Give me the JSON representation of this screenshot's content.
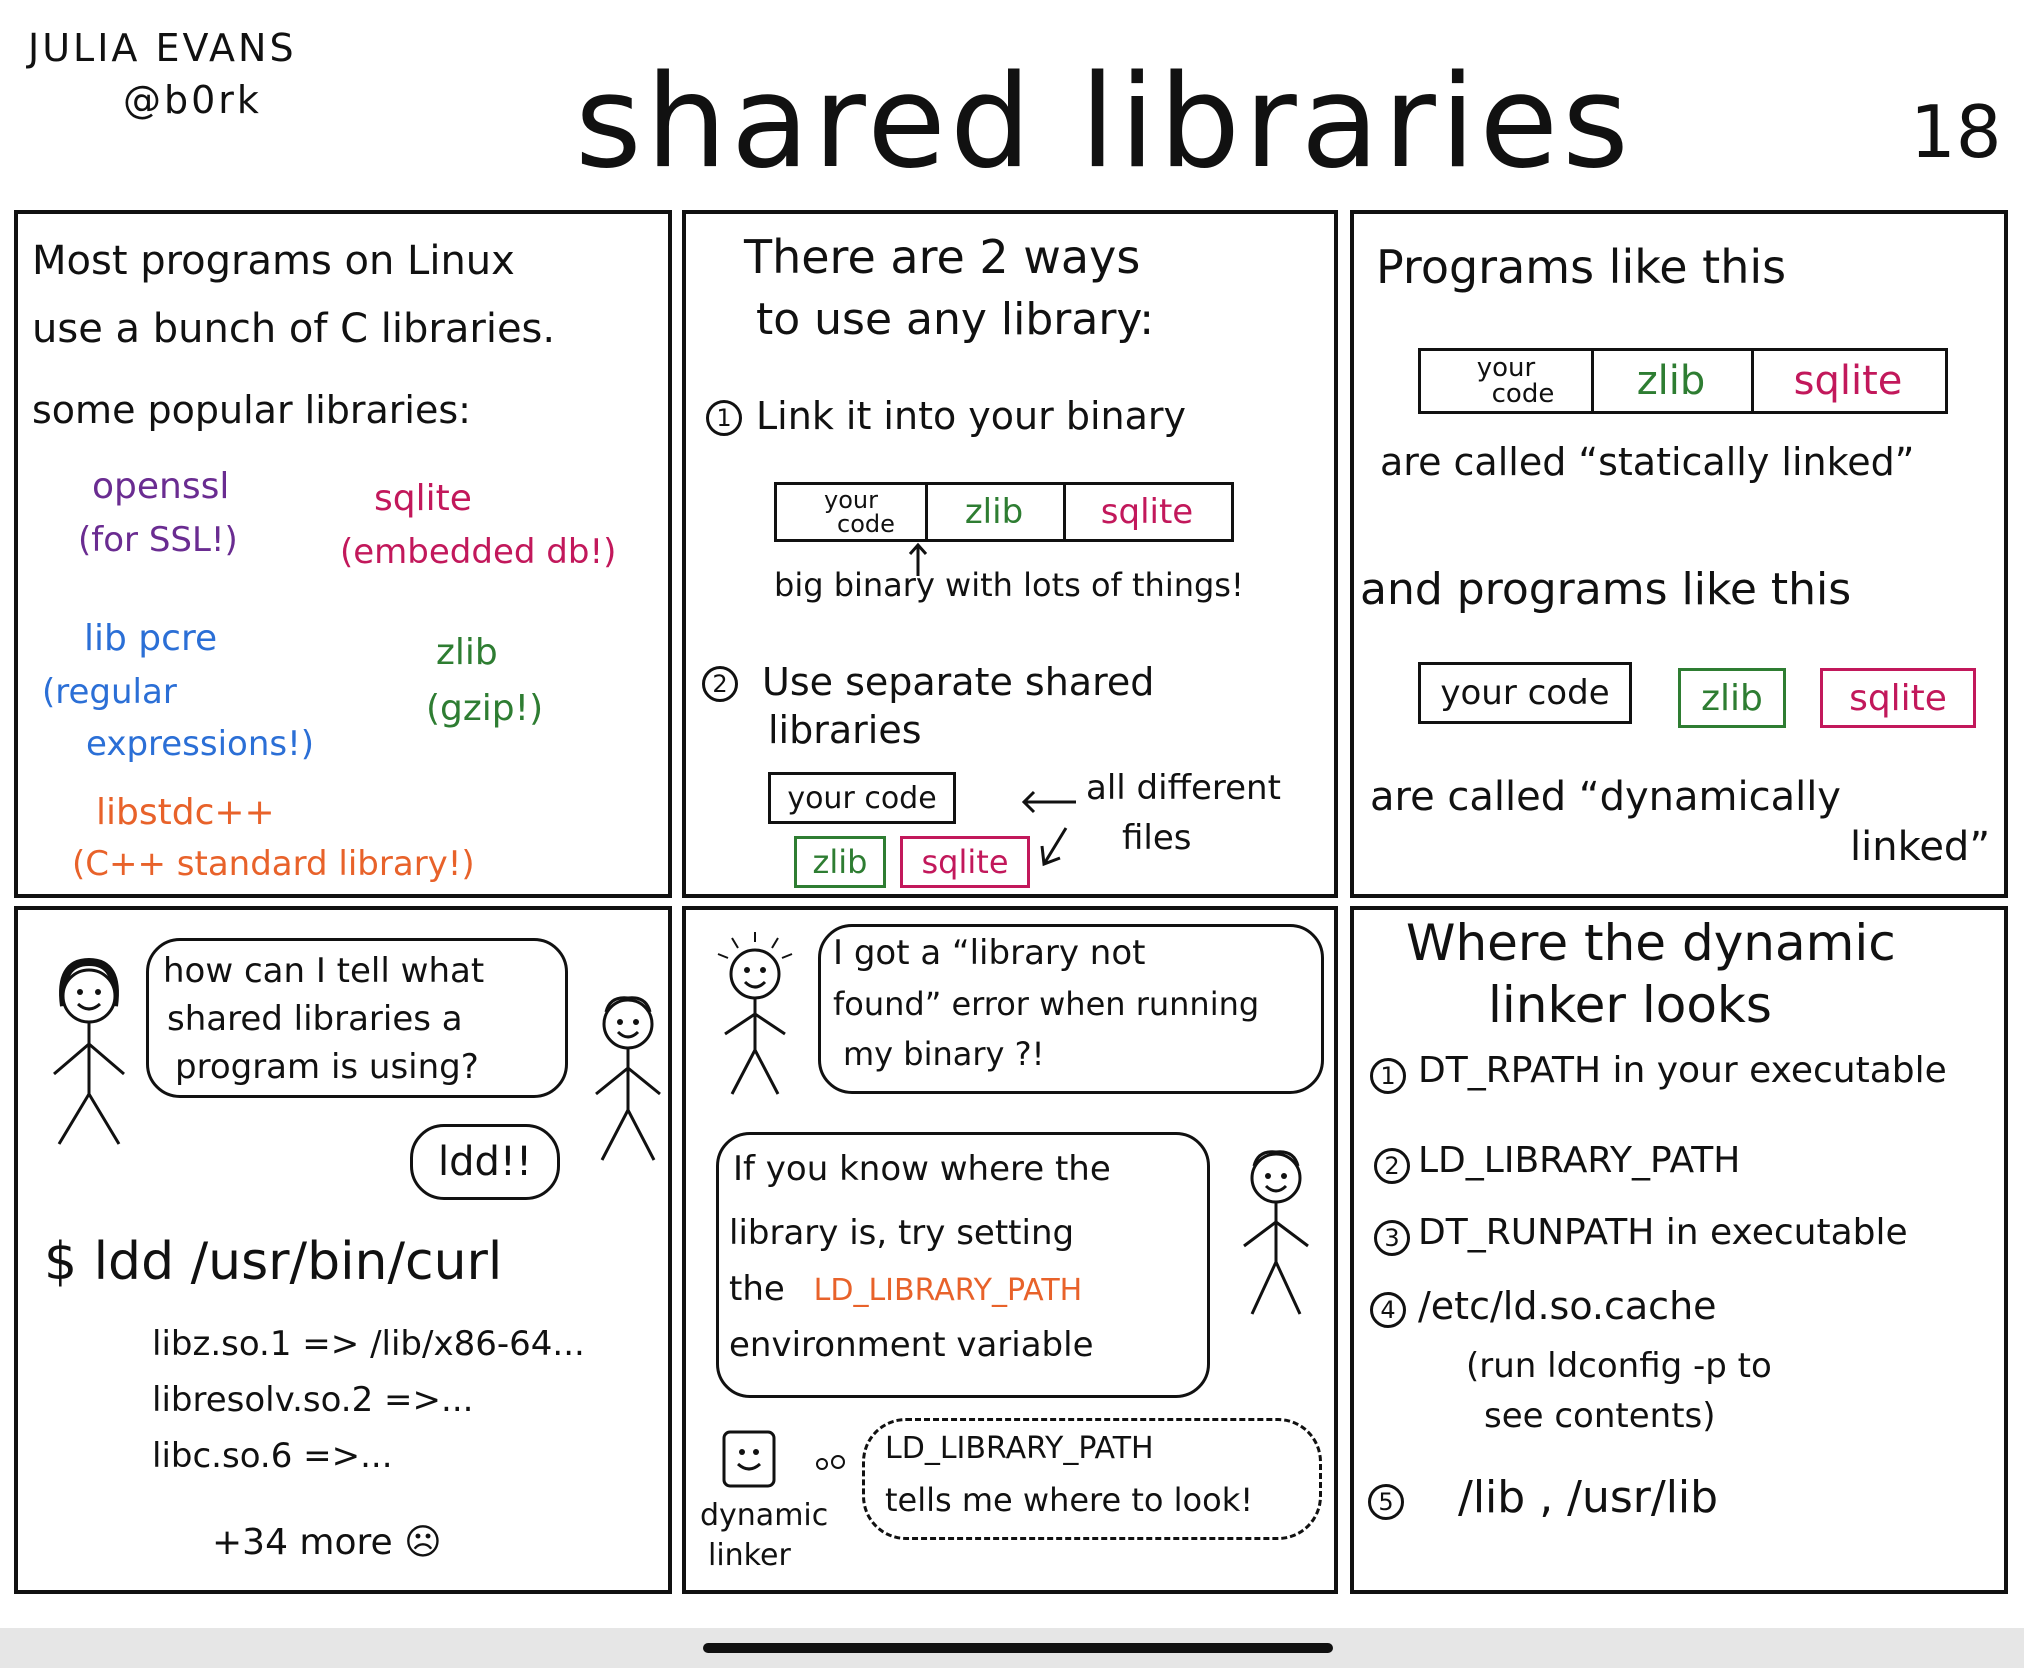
{
  "header": {
    "author_name": "JULIA EVANS",
    "author_handle": "@b0rk",
    "title": "shared libraries",
    "page_number": "18"
  },
  "colors": {
    "ink": "#111111",
    "openssl": "#6a2c91",
    "sqlite": "#c2185b",
    "pcre": "#2b6fd6",
    "zlib": "#2e7d32",
    "libstdcpp": "#e8622a",
    "ld_library_path": "#e8622a"
  },
  "panel1": {
    "line1": "Most programs on Linux",
    "line2": "use a bunch of C libraries.",
    "line3": "some popular libraries:",
    "libs": [
      {
        "name": "openssl",
        "note": "(for SSL!)"
      },
      {
        "name": "sqlite",
        "note": "(embedded db!)"
      },
      {
        "name": "lib pcre",
        "note1": "(regular",
        "note2": "expressions!)"
      },
      {
        "name": "zlib",
        "note": "(gzip!)"
      },
      {
        "name": "libstdc++",
        "note": "(C++ standard library!)"
      }
    ]
  },
  "panel2": {
    "heading1": "There are 2 ways",
    "heading2": "to use any library:",
    "way1_num": "1",
    "way1": "Link it into your binary",
    "bin_your": "your",
    "bin_code": "code",
    "bin_zlib": "zlib",
    "bin_sqlite": "sqlite",
    "big_binary": "big binary with lots of things!",
    "way2_num": "2",
    "way2_line1": "Use separate shared",
    "way2_line2": "libraries",
    "your_code": "your code",
    "zlib": "zlib",
    "sqlite": "sqlite",
    "all_different": "all different",
    "files": "files"
  },
  "panel3": {
    "line1": "Programs like this",
    "bin_your": "your",
    "bin_code": "code",
    "bin_zlib": "zlib",
    "bin_sqlite": "sqlite",
    "static1": "are called “statically linked”",
    "line2": "and programs like this",
    "your_code": "your code",
    "zlib": "zlib",
    "sqlite": "sqlite",
    "dyn1": "are called “dynamically",
    "dyn2": "linked”"
  },
  "panel4": {
    "q1": "how can I tell what",
    "q2": "shared libraries a",
    "q3": "program is using?",
    "answer": "ldd!!",
    "command": "$ ldd /usr/bin/curl",
    "out1": "libz.so.1  => /lib/x86-64...",
    "out2": "libresolv.so.2 =>...",
    "out3": "libc.so.6  =>...",
    "more": "+34 more ☹"
  },
  "panel5": {
    "err1": "I got a “library not",
    "err2": "found” error when running",
    "err3": "my binary ?!",
    "tip1": "If you know where the",
    "tip2": "library is, try setting",
    "tip3_prefix": "the",
    "tip3_var": "LD_LIBRARY_PATH",
    "tip4": "environment variable",
    "linker1": "dynamic",
    "linker2": "linker",
    "thought1": "LD_LIBRARY_PATH",
    "thought2": "tells me where to look!"
  },
  "panel6": {
    "heading1": "Where the dynamic",
    "heading2": "linker looks",
    "items": [
      {
        "num": "1",
        "text": "DT_RPATH in your executable"
      },
      {
        "num": "2",
        "text": "LD_LIBRARY_PATH"
      },
      {
        "num": "3",
        "text": "DT_RUNPATH in executable"
      },
      {
        "num": "4",
        "text": "/etc/ld.so.cache",
        "sub1": "(run ldconfig -p to",
        "sub2": "see contents)"
      },
      {
        "num": "5",
        "text": "/lib , /usr/lib"
      }
    ]
  }
}
